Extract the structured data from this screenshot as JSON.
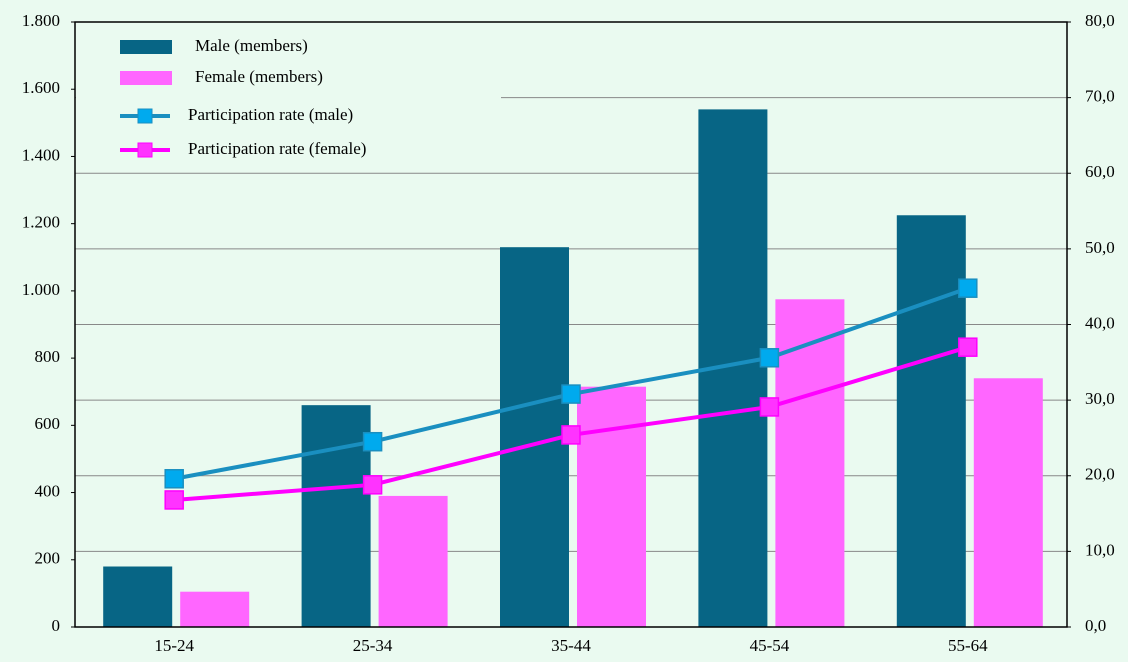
{
  "chart_data": {
    "type": "bar_line",
    "categories": [
      "15-24",
      "25-34",
      "35-44",
      "45-54",
      "55-64"
    ],
    "series": [
      {
        "name": "Male (members)",
        "type": "bar",
        "color": "#076585",
        "values": [
          180,
          660,
          1130,
          1540,
          1225
        ]
      },
      {
        "name": "Female (members)",
        "type": "bar",
        "color": "#ff66ff",
        "values": [
          105,
          390,
          715,
          975,
          740
        ]
      },
      {
        "name": "Participation rate (male)",
        "type": "line",
        "axis": "y2",
        "color": "#1a8fc0",
        "marker_color": "#00aaee",
        "values": [
          19.6,
          24.5,
          30.8,
          35.6,
          44.8
        ]
      },
      {
        "name": "Participation rate (female)",
        "type": "line",
        "axis": "y2",
        "color": "#ff00ff",
        "marker_color": "#ff33ff",
        "values": [
          16.8,
          18.8,
          25.4,
          29.1,
          37.0
        ]
      }
    ],
    "ylim": [
      0,
      1800
    ],
    "yticks": [
      0,
      200,
      400,
      600,
      800,
      {
        "value": 1000,
        "label": "1.000"
      },
      {
        "value": 1200,
        "label": "1.200"
      },
      {
        "value": 1400,
        "label": "1.400"
      },
      {
        "value": 1600,
        "label": "1.600"
      },
      {
        "value": 1800,
        "label": "1.800"
      }
    ],
    "y2lim": [
      0,
      80
    ],
    "y2ticks": [
      {
        "value": 0,
        "label": "0,0"
      },
      {
        "value": 10,
        "label": "10,0"
      },
      {
        "value": 20,
        "label": "20,0"
      },
      {
        "value": 30,
        "label": "30,0"
      },
      {
        "value": 40,
        "label": "40,0"
      },
      {
        "value": 50,
        "label": "50,0"
      },
      {
        "value": 60,
        "label": "60,0"
      },
      {
        "value": 70,
        "label": "70,0"
      },
      {
        "value": 80,
        "label": "80,0"
      }
    ],
    "grid": "y2",
    "legend": "top-left"
  }
}
